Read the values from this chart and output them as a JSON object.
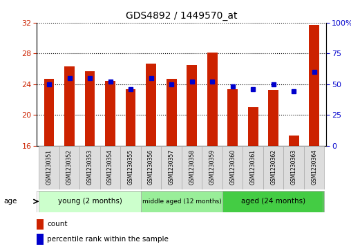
{
  "title": "GDS4892 / 1449570_at",
  "samples": [
    "GSM1230351",
    "GSM1230352",
    "GSM1230353",
    "GSM1230354",
    "GSM1230355",
    "GSM1230356",
    "GSM1230357",
    "GSM1230358",
    "GSM1230359",
    "GSM1230360",
    "GSM1230361",
    "GSM1230362",
    "GSM1230363",
    "GSM1230364"
  ],
  "counts": [
    24.7,
    26.3,
    25.7,
    24.4,
    23.3,
    26.7,
    24.7,
    26.5,
    28.1,
    23.3,
    21.0,
    23.2,
    17.3,
    31.7
  ],
  "percentiles": [
    50,
    55,
    55,
    52,
    46,
    55,
    50,
    52,
    52,
    48,
    46,
    50,
    44,
    60
  ],
  "ylim_left": [
    16,
    32
  ],
  "ylim_right": [
    0,
    100
  ],
  "yticks_left": [
    16,
    20,
    24,
    28,
    32
  ],
  "yticks_right": [
    0,
    25,
    50,
    75,
    100
  ],
  "bar_color": "#cc2200",
  "dot_color": "#0000cc",
  "bar_width": 0.5,
  "groups": [
    {
      "label": "young (2 months)",
      "start": 0,
      "end": 4,
      "color": "#ccffcc"
    },
    {
      "label": "middle aged (12 months)",
      "start": 5,
      "end": 8,
      "color": "#99ee99"
    },
    {
      "label": "aged (24 months)",
      "start": 9,
      "end": 13,
      "color": "#44cc44"
    }
  ],
  "age_label": "age",
  "legend_count": "count",
  "legend_percentile": "percentile rank within the sample",
  "grid_color": "black",
  "background_color": "#ffffff",
  "tick_color_left": "#cc2200",
  "tick_color_right": "#0000cc",
  "spine_color": "#888888"
}
